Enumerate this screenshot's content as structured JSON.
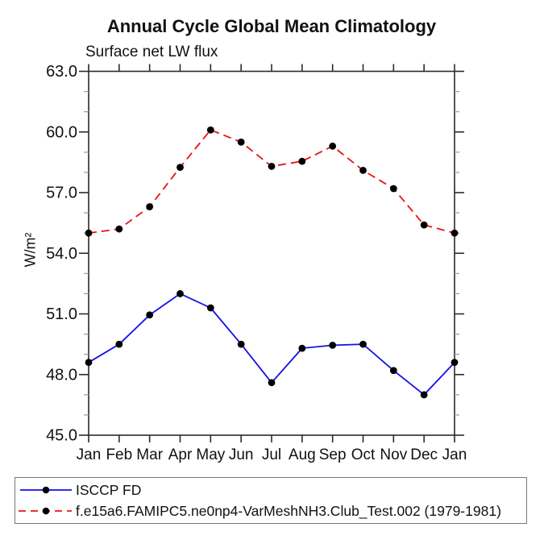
{
  "chart_data": {
    "type": "line",
    "title": "Annual Cycle Global Mean Climatology",
    "subtitle": "Surface net LW flux",
    "ylabel": "W/m²",
    "categories": [
      "Jan",
      "Feb",
      "Mar",
      "Apr",
      "May",
      "Jun",
      "Jul",
      "Aug",
      "Sep",
      "Oct",
      "Nov",
      "Dec",
      "Jan"
    ],
    "ylim": [
      45.0,
      63.0
    ],
    "ytick_step": 3.0,
    "yminor_step": 1.0,
    "ytick_labels": [
      "45.0",
      "48.0",
      "51.0",
      "54.0",
      "57.0",
      "60.0",
      "63.0"
    ],
    "grid": false,
    "legend_position": "below-boxed",
    "marker": {
      "shape": "circle",
      "color": "#000000"
    },
    "series": [
      {
        "name": "ISCCP FD",
        "color": "#1111e8",
        "line_style": "solid",
        "values": [
          48.6,
          49.5,
          50.95,
          52.0,
          51.3,
          49.5,
          47.6,
          49.3,
          49.45,
          49.5,
          48.2,
          47.0,
          48.6
        ]
      },
      {
        "name": "f.e15a6.FAMIPC5.ne0np4-VarMeshNH3.Club_Test.002 (1979-1981)",
        "color": "#ee1111",
        "line_style": "dashed",
        "values": [
          55.0,
          55.2,
          56.3,
          58.25,
          60.1,
          59.5,
          58.3,
          58.55,
          59.3,
          58.1,
          57.2,
          55.4,
          55.0
        ]
      }
    ],
    "axis_color": "#2a2a2a"
  }
}
